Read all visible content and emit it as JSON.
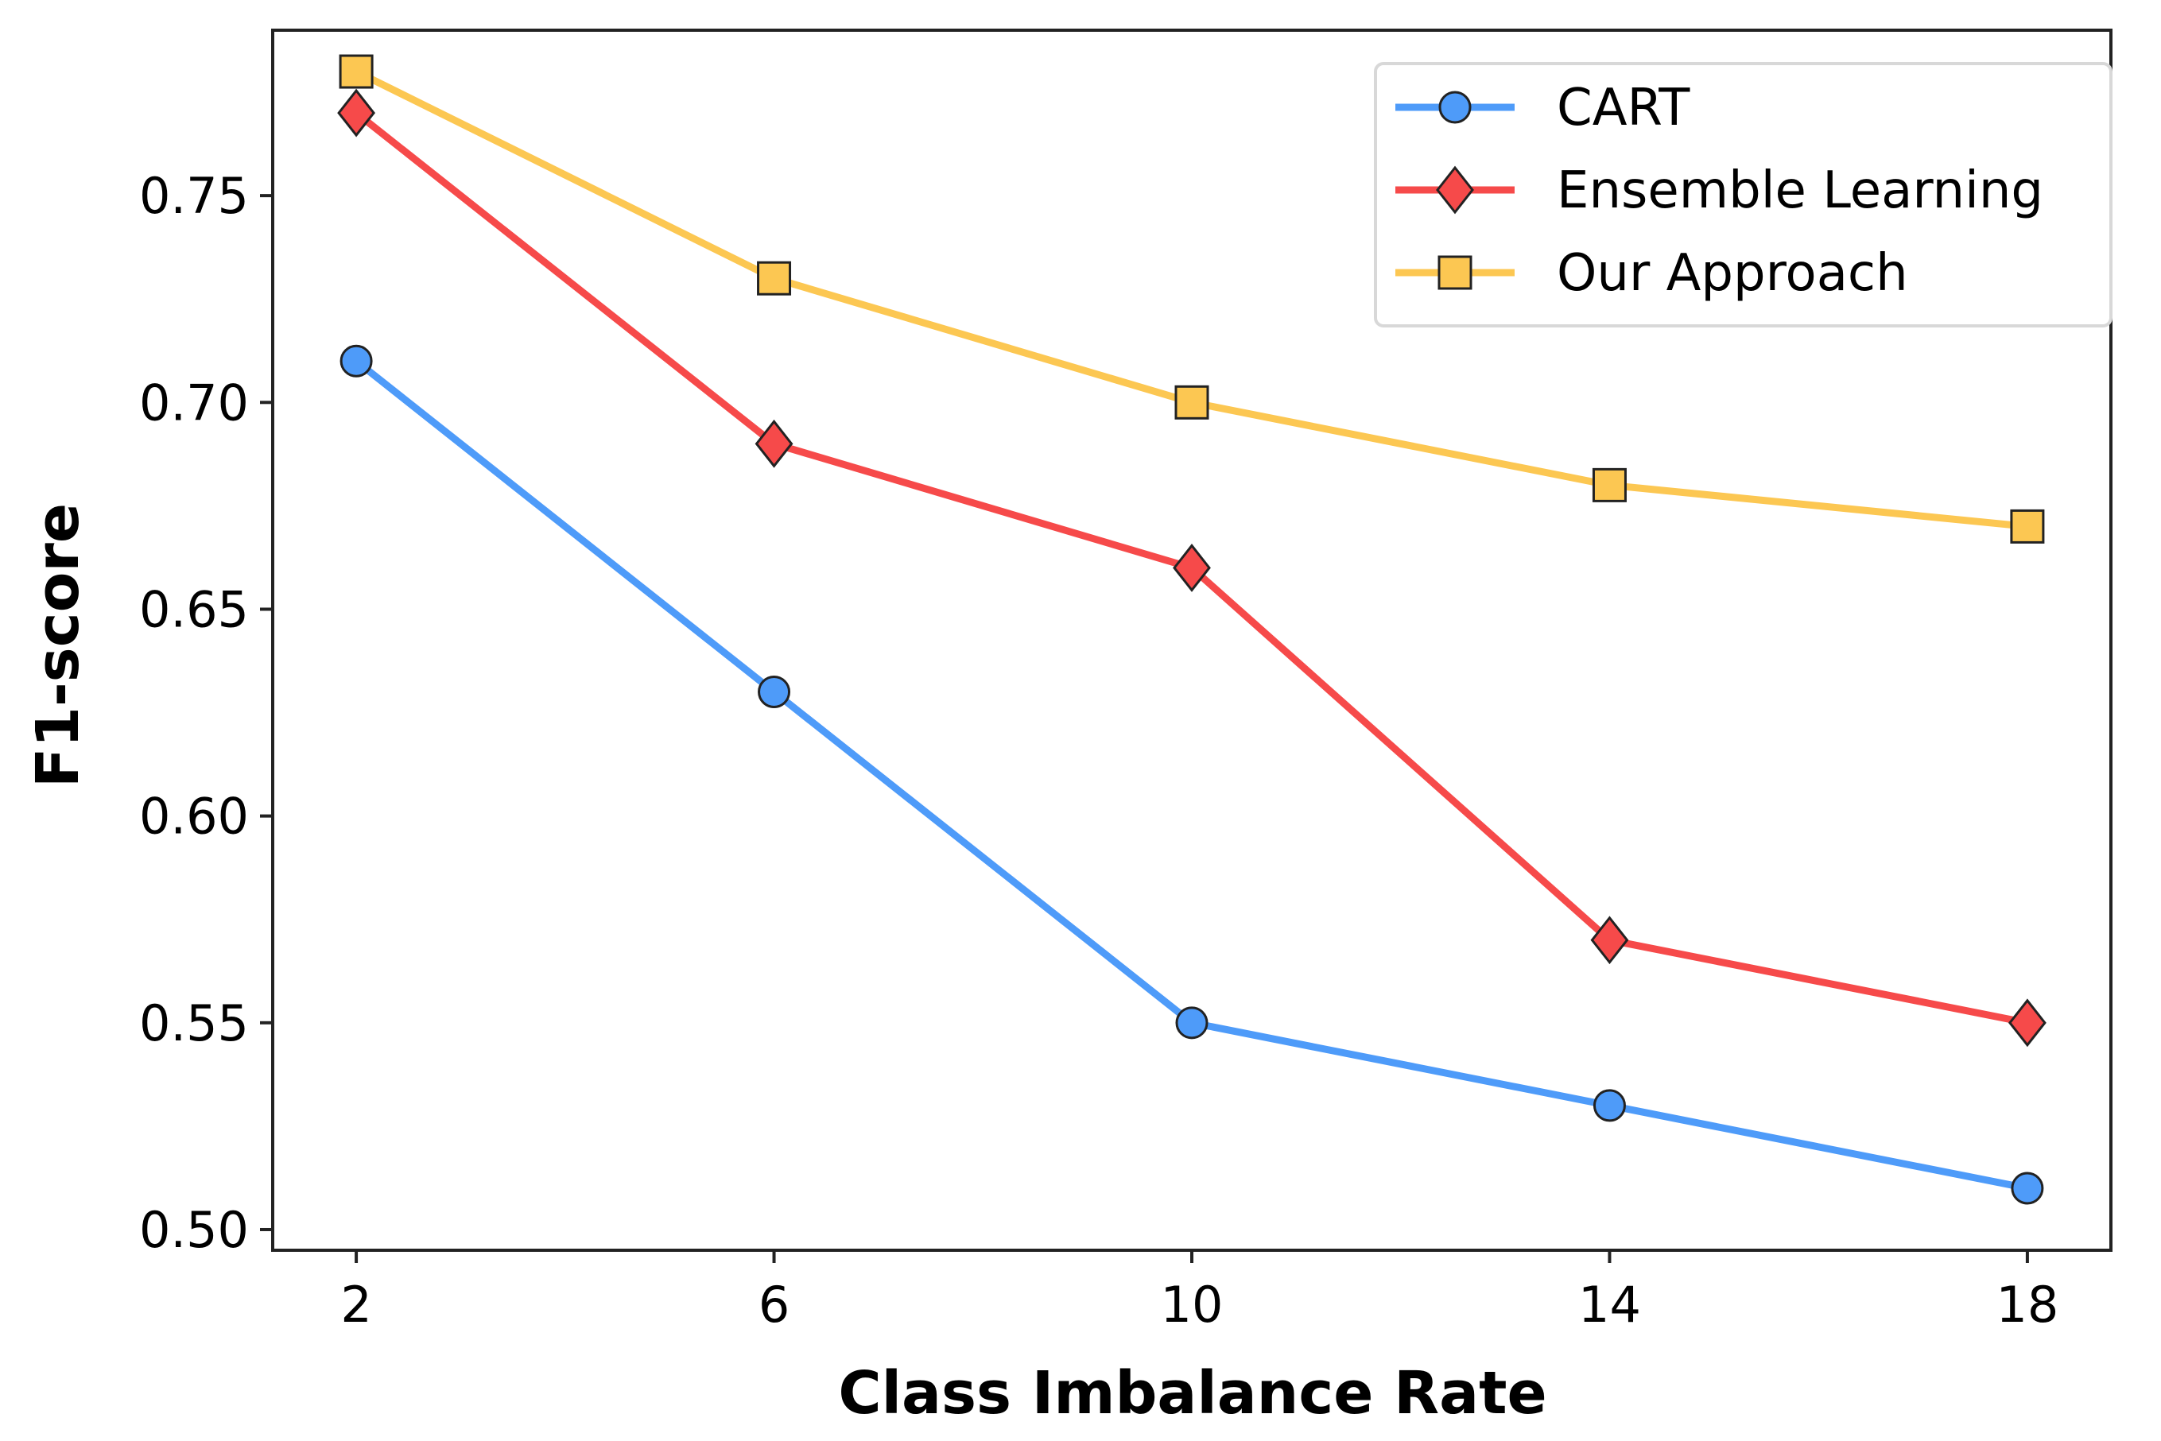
{
  "chart_data": {
    "type": "line",
    "title": "",
    "xlabel": "Class Imbalance Rate",
    "ylabel": "F1-score",
    "x": [
      2,
      6,
      10,
      14,
      18
    ],
    "xticks": [
      "2",
      "6",
      "10",
      "14",
      "18"
    ],
    "yticks": [
      "0.50",
      "0.55",
      "0.60",
      "0.65",
      "0.70",
      "0.75"
    ],
    "ytick_values": [
      0.5,
      0.55,
      0.6,
      0.65,
      0.7,
      0.75
    ],
    "xlim": [
      1.2,
      18.8
    ],
    "ylim": [
      0.495,
      0.79
    ],
    "grid": false,
    "legend_position": "top-right",
    "series": [
      {
        "name": "CART",
        "color": "#4e9bf9",
        "marker": "circle",
        "values": [
          0.71,
          0.63,
          0.55,
          0.53,
          0.51
        ]
      },
      {
        "name": "Ensemble Learning",
        "color": "#f64a4a",
        "marker": "diamond",
        "values": [
          0.77,
          0.69,
          0.66,
          0.57,
          0.55
        ]
      },
      {
        "name": "Our Approach",
        "color": "#fcc752",
        "marker": "square",
        "values": [
          0.78,
          0.73,
          0.7,
          0.68,
          0.67
        ]
      }
    ]
  }
}
